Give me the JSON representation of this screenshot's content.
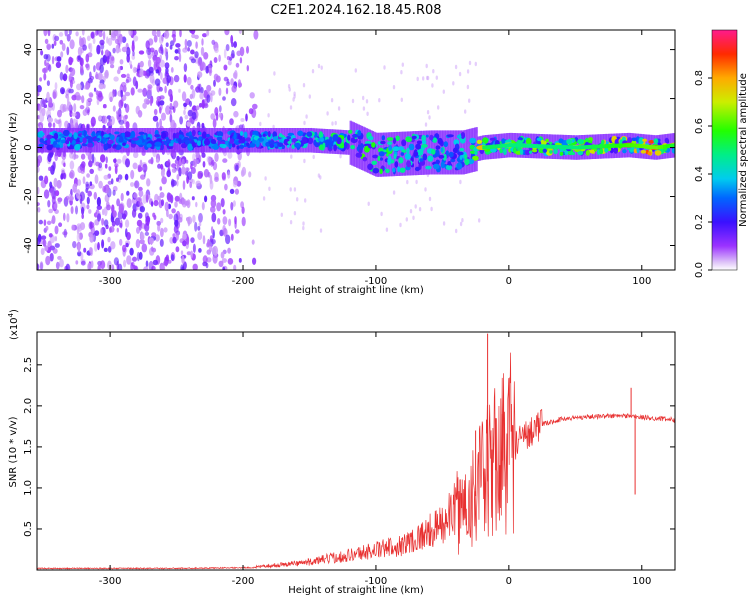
{
  "title": "C2E1.2024.162.18.45.R08",
  "chart_data": [
    {
      "type": "heatmap",
      "xlabel": "Height of straight line (km)",
      "ylabel": "Frequency (Hz)",
      "xlim": [
        -355,
        125
      ],
      "ylim": [
        -50,
        48
      ],
      "xticks": [
        -300,
        -200,
        -100,
        0,
        100
      ],
      "yticks": [
        -40,
        -20,
        0,
        20,
        40
      ],
      "colorbar": {
        "label": "Normalized spectral amplitude",
        "ticks": [
          "0.0",
          "0.2",
          "0.4",
          "0.6",
          "0.8"
        ],
        "tick_values": [
          0.0,
          0.2,
          0.4,
          0.6,
          0.8
        ],
        "range": [
          0,
          1
        ],
        "colormap": "rainbow (violet to red)"
      },
      "band": [
        {
          "x": -350,
          "center": 3,
          "amp": 0.35
        },
        {
          "x": -300,
          "center": 3,
          "amp": 0.3
        },
        {
          "x": -250,
          "center": 3,
          "amp": 0.3
        },
        {
          "x": -200,
          "center": 3,
          "amp": 0.35
        },
        {
          "x": -150,
          "center": 3,
          "amp": 0.45
        },
        {
          "x": -120,
          "center": 2,
          "amp": 0.55
        },
        {
          "x": -100,
          "center": -3,
          "amp": 0.55
        },
        {
          "x": -60,
          "center": -2,
          "amp": 0.45
        },
        {
          "x": -35,
          "center": -2,
          "amp": 0.4
        },
        {
          "x": -20,
          "center": 0,
          "amp": 0.7
        },
        {
          "x": 0,
          "center": 1,
          "amp": 0.65
        },
        {
          "x": 50,
          "center": 0,
          "amp": 0.65
        },
        {
          "x": 90,
          "center": 1,
          "amp": 0.8
        },
        {
          "x": 110,
          "center": 0,
          "amp": 0.85
        },
        {
          "x": 125,
          "center": 1,
          "amp": 0.7
        }
      ],
      "noise_region": [
        -355,
        -190
      ]
    },
    {
      "type": "line",
      "xlabel": "Height of straight line (km)",
      "ylabel": "SNR (10 * v/v)",
      "multiplier_label": "(x10",
      "multiplier_exp": "4",
      "multiplier_close": ")",
      "xlim": [
        -355,
        125
      ],
      "ylim": [
        0,
        2.9
      ],
      "xticks": [
        -300,
        -200,
        -100,
        0,
        100
      ],
      "yticks": [
        0.5,
        1.0,
        1.5,
        2.0,
        2.5
      ],
      "ytick_labels": [
        "0.5",
        "1.0",
        "1.5",
        "2.0",
        "2.5"
      ],
      "series_color": "#e83030",
      "trend": [
        {
          "x": -355,
          "y": 0.02
        },
        {
          "x": -250,
          "y": 0.02
        },
        {
          "x": -190,
          "y": 0.03
        },
        {
          "x": -150,
          "y": 0.08
        },
        {
          "x": -120,
          "y": 0.15
        },
        {
          "x": -80,
          "y": 0.25
        },
        {
          "x": -50,
          "y": 0.45
        },
        {
          "x": -30,
          "y": 0.8
        },
        {
          "x": -15,
          "y": 1.1
        },
        {
          "x": 0,
          "y": 1.45
        },
        {
          "x": 10,
          "y": 1.6
        },
        {
          "x": 20,
          "y": 1.75
        },
        {
          "x": 40,
          "y": 1.84
        },
        {
          "x": 60,
          "y": 1.87
        },
        {
          "x": 90,
          "y": 1.88
        },
        {
          "x": 100,
          "y": 1.86
        },
        {
          "x": 125,
          "y": 1.83
        }
      ],
      "spikes": [
        {
          "x": -16,
          "y": 2.88
        },
        {
          "x": -25,
          "y": 1.7
        },
        {
          "x": -10,
          "y": 1.85
        },
        {
          "x": -5,
          "y": 1.9
        },
        {
          "x": 92,
          "y": 2.22
        },
        {
          "x": 95,
          "y": 0.92
        }
      ]
    }
  ]
}
